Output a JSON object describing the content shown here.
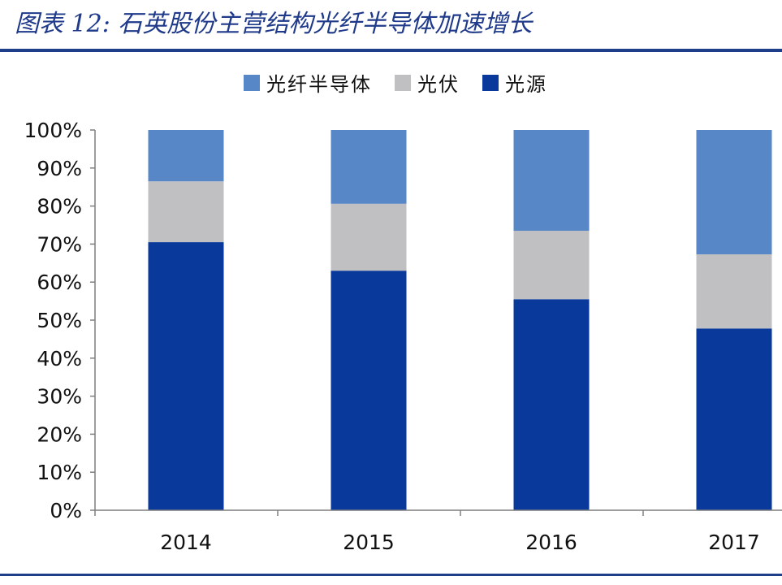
{
  "header": {
    "title": "图表 12:  石英股份主营结构光纤半导体加速增长"
  },
  "legend": [
    {
      "label": "光纤半导体",
      "color": "#5787c7"
    },
    {
      "label": "光伏",
      "color": "#c0c0c2"
    },
    {
      "label": "光源",
      "color": "#08399b"
    }
  ],
  "chart_data": {
    "type": "bar",
    "stacked": true,
    "categories": [
      "2014",
      "2015",
      "2016",
      "2017"
    ],
    "series": [
      {
        "name": "光源",
        "values": [
          70.5,
          63,
          55.5,
          47.8
        ],
        "color": "#08399b"
      },
      {
        "name": "光伏",
        "values": [
          16,
          17.6,
          18,
          19.5
        ],
        "color": "#c0c0c2"
      },
      {
        "name": "光纤半导体",
        "values": [
          13.5,
          19.4,
          26.5,
          32.7
        ],
        "color": "#5787c7"
      }
    ],
    "ylim": [
      0,
      100
    ],
    "yticks": [
      "0%",
      "10%",
      "20%",
      "30%",
      "40%",
      "50%",
      "60%",
      "70%",
      "80%",
      "90%",
      "100%"
    ],
    "legend_position": "top",
    "grid": false
  }
}
